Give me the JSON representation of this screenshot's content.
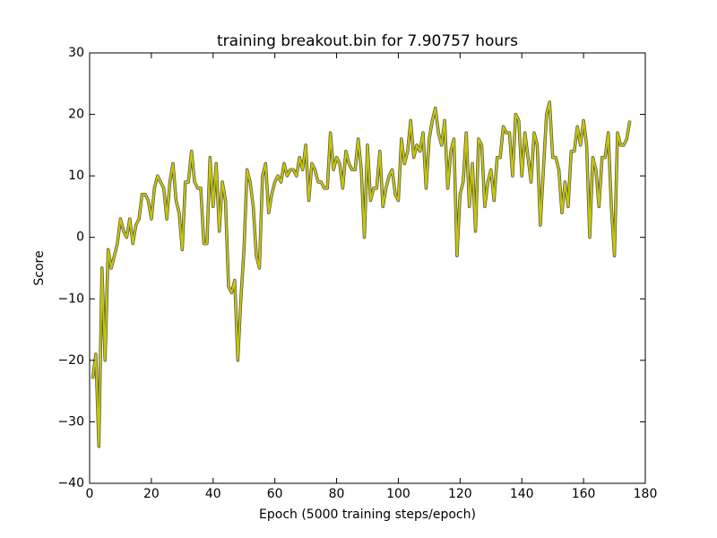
{
  "chart_data": {
    "type": "line",
    "title": "training breakout.bin for  7.90757 hours",
    "x_label": "Epoch (5000 training steps/epoch)",
    "y_label": "Score",
    "x": [
      1,
      2,
      3,
      4,
      5,
      6,
      7,
      8,
      9,
      10,
      11,
      12,
      13,
      14,
      15,
      16,
      17,
      18,
      19,
      20,
      21,
      22,
      23,
      24,
      25,
      26,
      27,
      28,
      29,
      30,
      31,
      32,
      33,
      34,
      35,
      36,
      37,
      38,
      39,
      40,
      41,
      42,
      43,
      44,
      45,
      46,
      47,
      48,
      49,
      50,
      51,
      52,
      53,
      54,
      55,
      56,
      57,
      58,
      59,
      60,
      61,
      62,
      63,
      64,
      65,
      66,
      67,
      68,
      69,
      70,
      71,
      72,
      73,
      74,
      75,
      76,
      77,
      78,
      79,
      80,
      81,
      82,
      83,
      84,
      85,
      86,
      87,
      88,
      89,
      90,
      91,
      92,
      93,
      94,
      95,
      96,
      97,
      98,
      99,
      100,
      101,
      102,
      103,
      104,
      105,
      106,
      107,
      108,
      109,
      110,
      111,
      112,
      113,
      114,
      115,
      116,
      117,
      118,
      119,
      120,
      121,
      122,
      123,
      124,
      125,
      126,
      127,
      128,
      129,
      130,
      131,
      132,
      133,
      134,
      135,
      136,
      137,
      138,
      139,
      140,
      141,
      142,
      143,
      144,
      145,
      146,
      147,
      148,
      149,
      150,
      151,
      152,
      153,
      154,
      155,
      156,
      157,
      158,
      159,
      160,
      161,
      162,
      163,
      164,
      165,
      166,
      167,
      168,
      169,
      170,
      171,
      172,
      173,
      174,
      175
    ],
    "series": [
      {
        "color": "#c8c800",
        "values": [
          -23,
          -19,
          -34,
          -5,
          -20,
          -2,
          -5,
          -3,
          -1,
          3,
          1,
          0,
          3,
          -1,
          2,
          3,
          7,
          7,
          6,
          3,
          8,
          10,
          9,
          8,
          3,
          9,
          12,
          6,
          4,
          -2,
          9,
          9,
          14,
          9,
          8,
          8,
          -1,
          -1,
          13,
          5,
          12,
          1,
          9,
          6,
          -8,
          -9,
          -7,
          -20,
          -10,
          -2,
          11,
          9,
          5,
          -3,
          -5,
          10,
          12,
          4,
          7,
          9,
          10,
          9,
          12,
          10,
          11,
          11,
          10,
          13,
          11,
          15,
          6,
          12,
          11,
          9,
          9,
          8,
          8,
          17,
          11,
          13,
          12,
          8,
          14,
          12,
          11,
          11,
          16,
          11,
          0,
          15,
          6,
          8,
          8,
          14,
          5,
          8,
          10,
          11,
          7,
          6,
          16,
          12,
          14,
          19,
          13,
          15,
          14,
          17,
          8,
          16,
          19,
          21,
          17,
          15,
          19,
          8,
          14,
          16,
          -3,
          7,
          9,
          17,
          5,
          12,
          1,
          16,
          15,
          5,
          9,
          11,
          6,
          13,
          13,
          18,
          17,
          17,
          10,
          20,
          19,
          10,
          17,
          13,
          9,
          17,
          15,
          2,
          11,
          20,
          22,
          13,
          13,
          11,
          4,
          9,
          5,
          14,
          14,
          18,
          15,
          19,
          15,
          0,
          13,
          11,
          5,
          13,
          13,
          17,
          5,
          -3,
          17,
          15,
          15,
          16,
          19
        ]
      }
    ],
    "xlim": [
      0,
      180
    ],
    "xticks": [
      0,
      20,
      40,
      60,
      80,
      100,
      120,
      140,
      160,
      180
    ],
    "ylim": [
      -40,
      30
    ],
    "yticks": [
      {
        "value": -40,
        "label": "−40"
      },
      {
        "value": -30,
        "label": "−30"
      },
      {
        "value": -20,
        "label": "−20"
      },
      {
        "value": -10,
        "label": "−10"
      },
      0,
      10,
      20,
      30
    ]
  }
}
